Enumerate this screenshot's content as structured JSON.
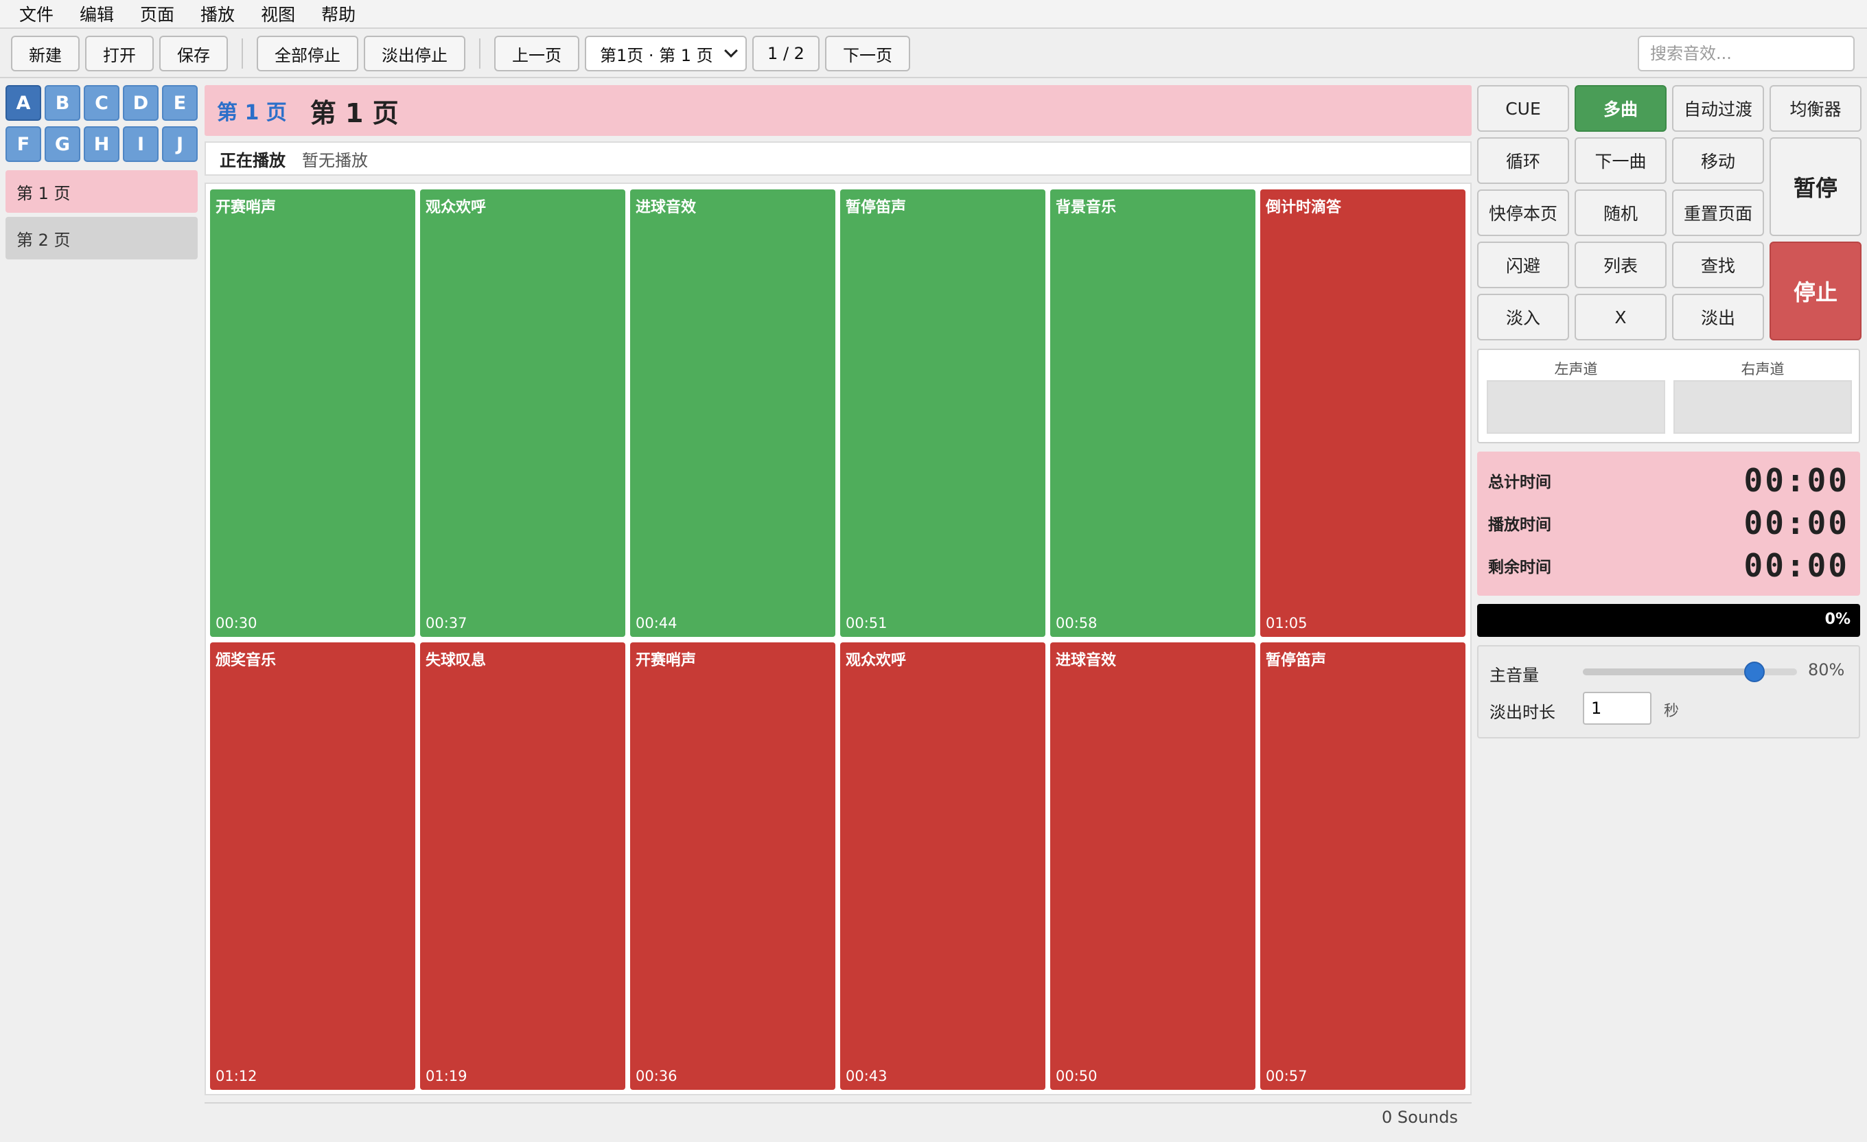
{
  "menu": [
    "文件",
    "编辑",
    "页面",
    "播放",
    "视图",
    "帮助"
  ],
  "toolbar": {
    "new": "新建",
    "open": "打开",
    "save": "保存",
    "stop_all": "全部停止",
    "fade_stop": "淡出停止",
    "prev_page": "上一页",
    "page_select": "第1页 · 第 1 页",
    "page_counter": "1 / 2",
    "next_page": "下一页",
    "search_placeholder": "搜索音效..."
  },
  "banks": [
    "A",
    "B",
    "C",
    "D",
    "E",
    "F",
    "G",
    "H",
    "I",
    "J"
  ],
  "active_bank": "A",
  "pages": [
    "第 1 页",
    "第 2 页"
  ],
  "header": {
    "page_num": "第 1 页",
    "page_title": "第 1 页"
  },
  "now_playing": {
    "label": "正在播放",
    "value": "暂无播放"
  },
  "pads": [
    {
      "name": "开赛哨声",
      "time": "00:30",
      "color": "green"
    },
    {
      "name": "观众欢呼",
      "time": "00:37",
      "color": "green"
    },
    {
      "name": "进球音效",
      "time": "00:44",
      "color": "green"
    },
    {
      "name": "暂停笛声",
      "time": "00:51",
      "color": "green"
    },
    {
      "name": "背景音乐",
      "time": "00:58",
      "color": "green"
    },
    {
      "name": "倒计时滴答",
      "time": "01:05",
      "color": "red"
    },
    {
      "name": "颁奖音乐",
      "time": "01:12",
      "color": "red"
    },
    {
      "name": "失球叹息",
      "time": "01:19",
      "color": "red"
    },
    {
      "name": "开赛哨声",
      "time": "00:36",
      "color": "red"
    },
    {
      "name": "观众欢呼",
      "time": "00:43",
      "color": "red"
    },
    {
      "name": "进球音效",
      "time": "00:50",
      "color": "red"
    },
    {
      "name": "暂停笛声",
      "time": "00:57",
      "color": "red"
    }
  ],
  "footer": {
    "sounds": "0 Sounds"
  },
  "controls": {
    "cue": "CUE",
    "multi": "多曲",
    "auto_fade": "自动过渡",
    "eq": "均衡器",
    "loop": "循环",
    "next": "下一曲",
    "move": "移动",
    "pause": "暂停",
    "quick_stop": "快停本页",
    "random": "随机",
    "reset_page": "重置页面",
    "duck": "闪避",
    "list": "列表",
    "find": "查找",
    "stop": "停止",
    "fade_in": "淡入",
    "x": "X",
    "fade_out": "淡出"
  },
  "meters": {
    "left": "左声道",
    "right": "右声道"
  },
  "times": {
    "total_label": "总计时间",
    "total": "00:00",
    "played_label": "播放时间",
    "played": "00:00",
    "remaining_label": "剩余时间",
    "remaining": "00:00"
  },
  "progress": {
    "percent": 0,
    "label": "0%"
  },
  "volume": {
    "label": "主音量",
    "value": 80,
    "label_pct": "80%"
  },
  "fade": {
    "label": "淡出时长",
    "value": "1",
    "unit": "秒"
  }
}
